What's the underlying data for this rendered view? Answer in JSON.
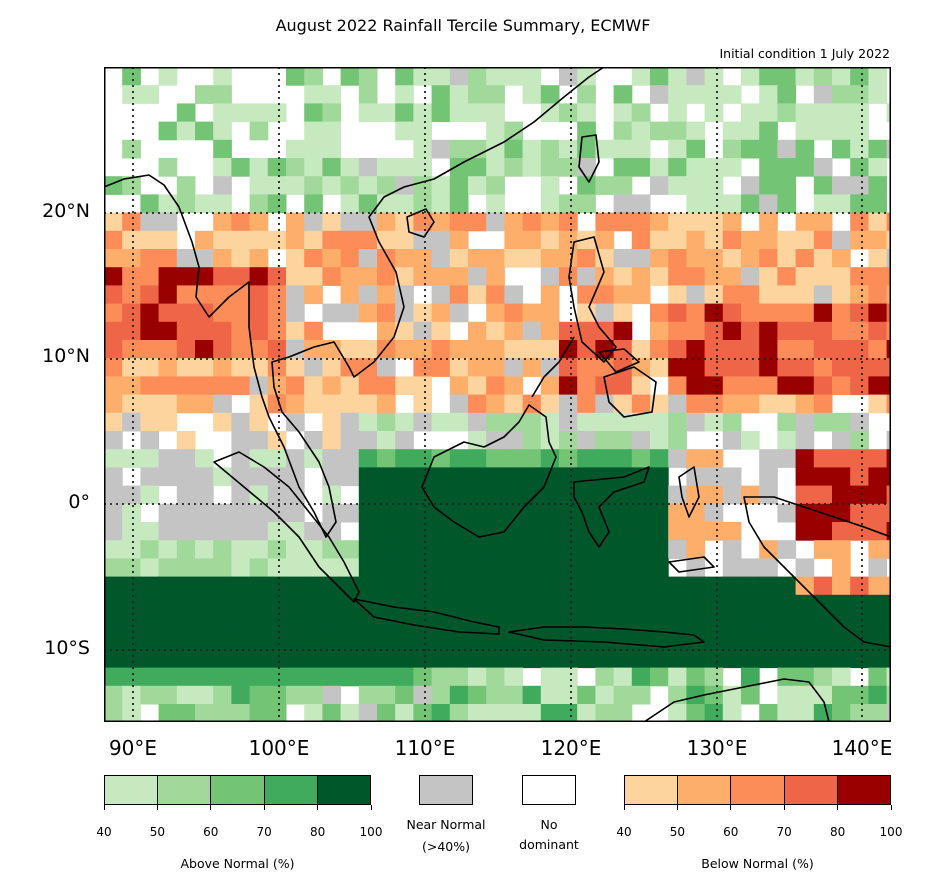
{
  "title": "August 2022 Rainfall Tercile Summary, ECMWF",
  "subtitle": "Initial condition 1 July 2022",
  "map": {
    "lon_range": [
      88,
      142
    ],
    "lat_range": [
      -15,
      30
    ],
    "lat_labels": [
      "20°N",
      "10°N",
      "0°",
      "10°S"
    ],
    "lon_labels": [
      "90°E",
      "100°E",
      "110°E",
      "120°E",
      "130°E",
      "140°E"
    ],
    "gridlines": "dotted"
  },
  "legend": {
    "above": {
      "caption": "Above Normal (%)",
      "ticks": [
        "40",
        "50",
        "60",
        "70",
        "80",
        "100"
      ],
      "colors": [
        "#c7e9c0",
        "#a1d99b",
        "#74c476",
        "#41ab5d",
        "#00572a"
      ]
    },
    "near": {
      "caption1": "Near Normal",
      "caption2": "(>40%)",
      "color": "#c4c4c4"
    },
    "none": {
      "caption1": "No",
      "caption2": "dominant",
      "color": "#ffffff"
    },
    "below": {
      "caption": "Below Normal (%)",
      "ticks": [
        "40",
        "50",
        "60",
        "70",
        "80",
        "100"
      ],
      "colors": [
        "#fdd49e",
        "#fdae6b",
        "#fc8d59",
        "#ef6548",
        "#990000"
      ]
    }
  }
}
